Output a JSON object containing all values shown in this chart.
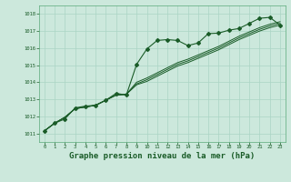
{
  "bg_color": "#cce8dc",
  "grid_color": "#aad4c4",
  "line_color": "#1a5c28",
  "marker_color": "#1a5c28",
  "xlabel": "Graphe pression niveau de la mer (hPa)",
  "xlabel_fontsize": 6.5,
  "ylabel_ticks": [
    1011,
    1012,
    1013,
    1014,
    1015,
    1016,
    1017,
    1018
  ],
  "xlim": [
    -0.5,
    23.5
  ],
  "ylim": [
    1010.5,
    1018.5
  ],
  "x_ticks": [
    0,
    1,
    2,
    3,
    4,
    5,
    6,
    7,
    8,
    9,
    10,
    11,
    12,
    13,
    14,
    15,
    16,
    17,
    18,
    19,
    20,
    21,
    22,
    23
  ],
  "series1_x": [
    0,
    1,
    2,
    3,
    4,
    5,
    6,
    7,
    8,
    9,
    10,
    11,
    12,
    13,
    14,
    15,
    16,
    17,
    18,
    19,
    20,
    21,
    22,
    23
  ],
  "series1_y": [
    1011.15,
    1011.6,
    1011.85,
    1012.5,
    1012.6,
    1012.65,
    1012.95,
    1013.35,
    1013.25,
    1015.05,
    1015.95,
    1016.45,
    1016.5,
    1016.45,
    1016.15,
    1016.3,
    1016.85,
    1016.88,
    1017.05,
    1017.15,
    1017.45,
    1017.75,
    1017.8,
    1017.35
  ],
  "series2_x": [
    0,
    1,
    2,
    3,
    4,
    5,
    6,
    7,
    8,
    9,
    10,
    11,
    12,
    13,
    14,
    15,
    16,
    17,
    18,
    19,
    20,
    21,
    22,
    23
  ],
  "series2_y": [
    1011.15,
    1011.6,
    1011.95,
    1012.45,
    1012.55,
    1012.65,
    1012.95,
    1013.25,
    1013.3,
    1013.85,
    1014.05,
    1014.35,
    1014.65,
    1014.95,
    1015.15,
    1015.4,
    1015.65,
    1015.9,
    1016.2,
    1016.5,
    1016.75,
    1017.0,
    1017.2,
    1017.35
  ],
  "series3_x": [
    0,
    1,
    2,
    3,
    4,
    5,
    6,
    7,
    8,
    9,
    10,
    11,
    12,
    13,
    14,
    15,
    16,
    17,
    18,
    19,
    20,
    21,
    22,
    23
  ],
  "series3_y": [
    1011.15,
    1011.6,
    1011.95,
    1012.45,
    1012.55,
    1012.65,
    1012.95,
    1013.25,
    1013.3,
    1013.9,
    1014.15,
    1014.45,
    1014.75,
    1015.05,
    1015.25,
    1015.5,
    1015.75,
    1016.0,
    1016.3,
    1016.6,
    1016.85,
    1017.1,
    1017.3,
    1017.45
  ],
  "series4_x": [
    0,
    1,
    2,
    3,
    4,
    5,
    6,
    7,
    8,
    9,
    10,
    11,
    12,
    13,
    14,
    15,
    16,
    17,
    18,
    19,
    20,
    21,
    22,
    23
  ],
  "series4_y": [
    1011.15,
    1011.6,
    1011.95,
    1012.45,
    1012.55,
    1012.65,
    1012.95,
    1013.25,
    1013.3,
    1014.0,
    1014.25,
    1014.55,
    1014.85,
    1015.15,
    1015.35,
    1015.6,
    1015.85,
    1016.1,
    1016.4,
    1016.7,
    1016.95,
    1017.2,
    1017.4,
    1017.55
  ]
}
